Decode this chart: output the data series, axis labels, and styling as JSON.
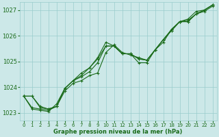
{
  "title": "Graphe pression niveau de la mer (hPa)",
  "bg_color": "#cce8e8",
  "grid_color": "#99cccc",
  "line_color": "#1a6b1a",
  "xlim": [
    -0.5,
    23.5
  ],
  "ylim": [
    1022.7,
    1027.3
  ],
  "xticks": [
    0,
    1,
    2,
    3,
    4,
    5,
    6,
    7,
    8,
    9,
    10,
    11,
    12,
    13,
    14,
    15,
    16,
    17,
    18,
    19,
    20,
    21,
    22,
    23
  ],
  "yticks": [
    1023,
    1024,
    1025,
    1026,
    1027
  ],
  "series": [
    [
      1023.65,
      1023.65,
      1023.2,
      1023.15,
      1023.25,
      1023.85,
      1024.15,
      1024.25,
      1024.45,
      1024.55,
      1025.35,
      1025.65,
      1025.35,
      1025.25,
      1025.15,
      1025.05,
      1025.45,
      1025.85,
      1026.25,
      1026.55,
      1026.55,
      1026.85,
      1026.95,
      1027.15
    ],
    [
      1023.65,
      1023.2,
      1023.15,
      1023.1,
      1023.25,
      1023.95,
      1024.25,
      1024.4,
      1024.6,
      1024.95,
      1025.6,
      1025.6,
      1025.3,
      1025.3,
      1025.1,
      1025.05,
      1025.45,
      1025.85,
      1026.2,
      1026.55,
      1026.6,
      1026.85,
      1027.0,
      1027.2
    ],
    [
      1023.65,
      1023.15,
      1023.1,
      1023.05,
      1023.35,
      1023.95,
      1024.25,
      1024.45,
      1024.75,
      1025.15,
      1025.75,
      1025.6,
      1025.3,
      1025.3,
      1024.95,
      1024.95,
      1025.45,
      1025.75,
      1026.25,
      1026.55,
      1026.65,
      1026.95,
      1027.0,
      1027.2
    ],
    [
      1023.65,
      1023.65,
      1023.25,
      1023.15,
      1023.25,
      1023.95,
      1024.25,
      1024.55,
      1024.75,
      1025.1,
      1025.6,
      1025.6,
      1025.3,
      1025.3,
      1025.1,
      1025.05,
      1025.45,
      1025.85,
      1026.2,
      1026.55,
      1026.55,
      1026.85,
      1027.0,
      1027.2
    ]
  ]
}
